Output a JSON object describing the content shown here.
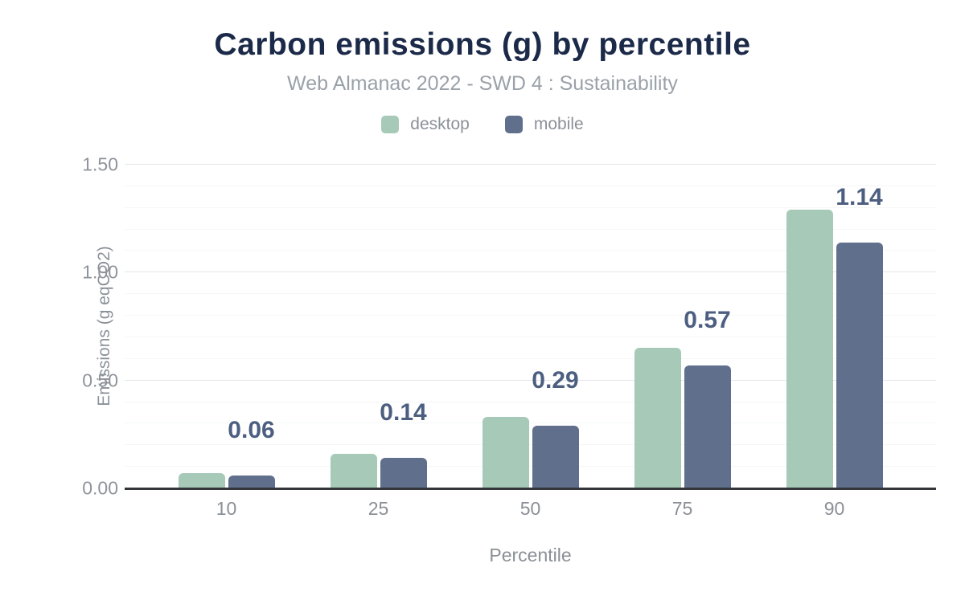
{
  "chart_data": {
    "type": "bar",
    "title": "Carbon emissions (g) by percentile",
    "subtitle": "Web Almanac 2022 - SWD 4 : Sustainability",
    "xlabel": "Percentile",
    "ylabel": "Emissions (g eqCO2)",
    "categories": [
      "10",
      "25",
      "50",
      "75",
      "90"
    ],
    "series": [
      {
        "name": "desktop",
        "color": "#a7cab8",
        "values": [
          0.07,
          0.16,
          0.33,
          0.65,
          1.29
        ]
      },
      {
        "name": "mobile",
        "color": "#5f6f8c",
        "values": [
          0.06,
          0.14,
          0.29,
          0.57,
          1.14
        ]
      }
    ],
    "data_labels": {
      "labeled_series": "mobile",
      "values": [
        "0.06",
        "0.14",
        "0.29",
        "0.57",
        "1.14"
      ],
      "color": "#4d5f80"
    },
    "ylim": [
      0,
      1.5
    ],
    "yticks": [
      {
        "value": 0.0,
        "label": "0.00"
      },
      {
        "value": 0.5,
        "label": "0.50"
      },
      {
        "value": 1.0,
        "label": "1.00"
      },
      {
        "value": 1.5,
        "label": "1.50"
      }
    ],
    "grid": {
      "minor_step": 0.1,
      "major_step": 0.5,
      "vertical_lines": false
    },
    "legend_position": "top",
    "colors": {
      "title": "#1c2a49",
      "subtitle": "#9aa1a8",
      "axis_text": "#8b9096",
      "axis_line": "#333538",
      "major_grid": "#e4e6e9",
      "minor_grid": "#f5f6f6",
      "background": "#ffffff"
    }
  }
}
